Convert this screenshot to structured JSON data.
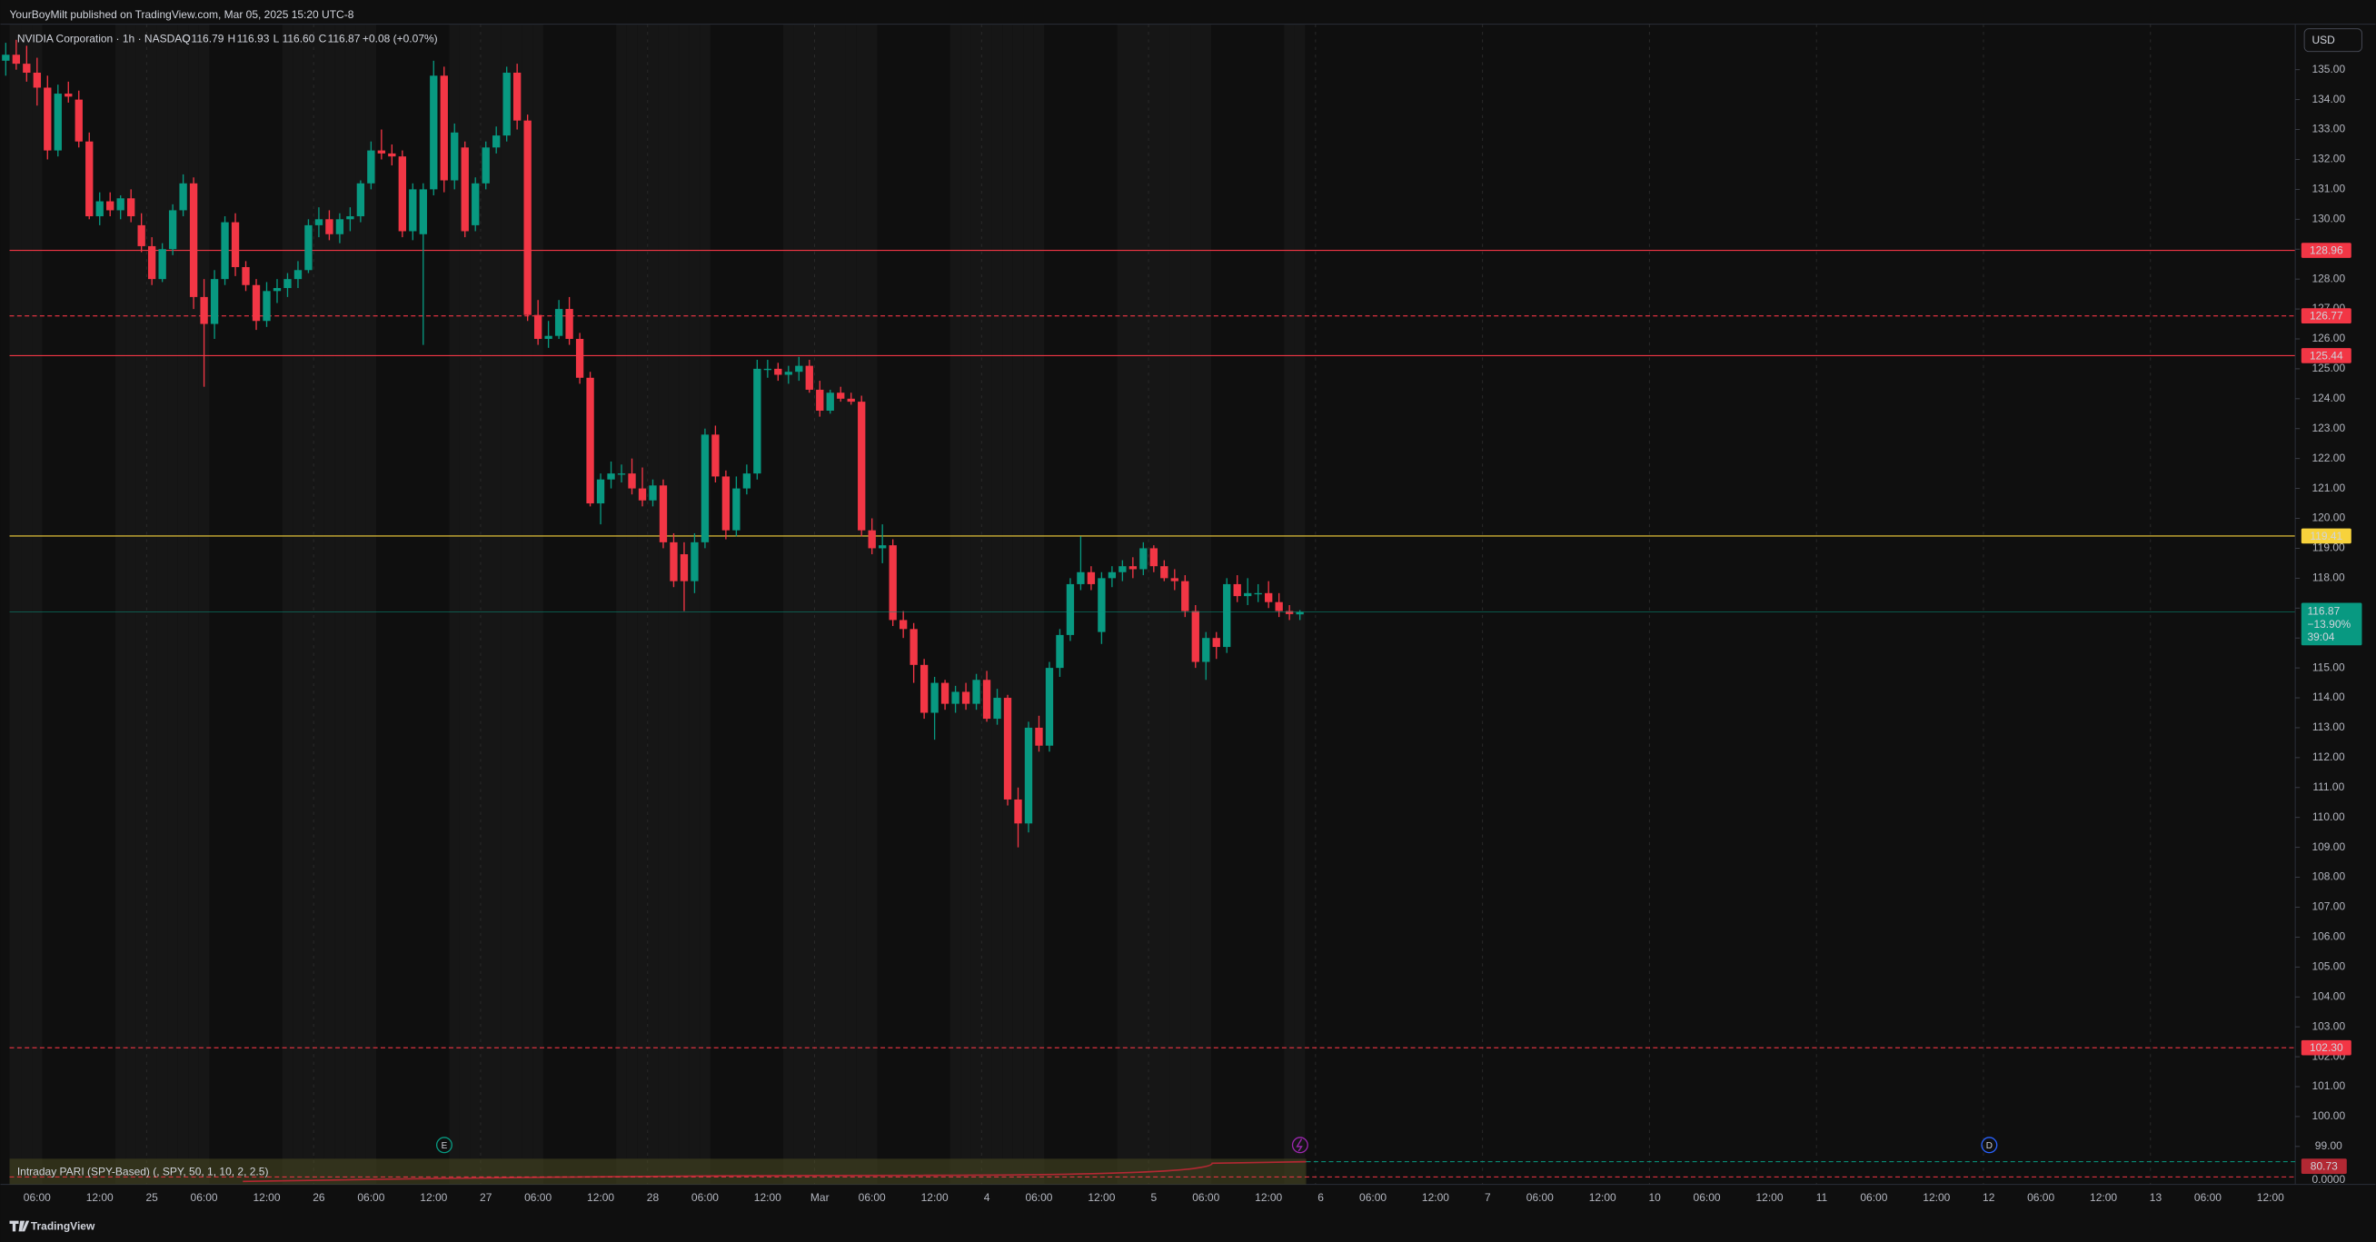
{
  "chart_data": {
    "type": "candlestick",
    "header": "YourBoyMilt published on TradingView.com, Mar 05, 2025 15:20 UTC-8",
    "symbol": "NVIDIA Corporation · 1h · NASDAQ",
    "ohlc_legend": [
      {
        "key": "O",
        "value": 116.79
      },
      {
        "key": "H",
        "value": 116.93
      },
      {
        "key": "L",
        "value": 116.6,
        "label": "116.60"
      },
      {
        "key": "C",
        "value": 116.87
      }
    ],
    "change": "+0.08 (+0.07%)",
    "currency": "USD",
    "up_color": "#089981",
    "down_color": "#f23645",
    "categories": [
      null,
      null,
      null,
      "06:00",
      null,
      null,
      null,
      null,
      null,
      "12:00",
      null,
      null,
      null,
      null,
      "25",
      null,
      null,
      null,
      null,
      "06:00",
      null,
      null,
      null,
      null,
      null,
      "12:00",
      null,
      null,
      null,
      null,
      "26",
      null,
      null,
      null,
      null,
      "06:00",
      null,
      null,
      null,
      null,
      null,
      "12:00",
      null,
      null,
      null,
      null,
      "27",
      null,
      null,
      null,
      null,
      "06:00",
      null,
      null,
      null,
      null,
      null,
      "12:00",
      null,
      null,
      null,
      null,
      "28",
      null,
      null,
      null,
      null,
      "06:00",
      null,
      null,
      null,
      null,
      null,
      "12:00",
      null,
      null,
      null,
      null,
      "Mar",
      null,
      null,
      null,
      null,
      "06:00",
      null,
      null,
      null,
      null,
      null,
      "12:00",
      null,
      null,
      null,
      null,
      "4",
      null,
      null,
      null,
      null,
      "06:00",
      null,
      null,
      null,
      null,
      null,
      "12:00",
      null,
      null,
      null,
      null,
      "5",
      null,
      null,
      null,
      null,
      "06:00",
      null,
      null,
      null,
      null,
      null,
      "12:00",
      null,
      null,
      null,
      null,
      "6",
      null,
      null,
      null,
      null,
      "06:00",
      null,
      null,
      null,
      null,
      null,
      "12:00",
      null,
      null,
      null,
      null,
      "7",
      null,
      null,
      null,
      null,
      "06:00",
      null,
      null,
      null,
      null,
      null,
      "12:00",
      null,
      null,
      null,
      null,
      "10",
      null,
      null,
      null,
      null,
      "06:00",
      null,
      null,
      null,
      null,
      null,
      "12:00",
      null,
      null,
      null,
      null,
      "11",
      null,
      null,
      null,
      null,
      "06:00",
      null,
      null,
      null,
      null,
      null,
      "12:00",
      null,
      null,
      null,
      null,
      "12",
      null,
      null,
      null,
      null,
      "06:00",
      null,
      null,
      null,
      null,
      null,
      "12:00",
      null,
      null,
      null,
      null,
      "13",
      null,
      null,
      null,
      null,
      "06:00",
      null,
      null,
      null,
      null,
      null,
      "12:00"
    ],
    "ohlc": [
      [
        135.3,
        135.9,
        134.8,
        135.5
      ],
      [
        135.5,
        136.0,
        135.0,
        135.2
      ],
      [
        135.2,
        135.8,
        134.6,
        134.9
      ],
      [
        134.9,
        135.4,
        133.8,
        134.4
      ],
      [
        134.4,
        134.8,
        132.0,
        132.3
      ],
      [
        132.3,
        134.5,
        132.1,
        134.2
      ],
      [
        134.2,
        134.6,
        133.9,
        134.1
      ],
      [
        134.0,
        134.3,
        132.4,
        132.6
      ],
      [
        132.6,
        132.9,
        130.0,
        130.1
      ],
      [
        130.1,
        130.9,
        129.8,
        130.6
      ],
      [
        130.6,
        130.9,
        130.1,
        130.3
      ],
      [
        130.3,
        130.8,
        130.0,
        130.7
      ],
      [
        130.7,
        131.0,
        129.9,
        130.1
      ],
      [
        129.8,
        130.2,
        128.9,
        129.1
      ],
      [
        129.1,
        129.4,
        127.8,
        128.0
      ],
      [
        128.0,
        129.2,
        127.9,
        129.0
      ],
      [
        129.0,
        130.5,
        128.8,
        130.3
      ],
      [
        130.3,
        131.5,
        130.1,
        131.2
      ],
      [
        131.2,
        131.4,
        127.0,
        127.4
      ],
      [
        127.4,
        128.0,
        124.4,
        126.5
      ],
      [
        126.5,
        128.3,
        126.0,
        128.0
      ],
      [
        128.0,
        130.1,
        127.8,
        129.9
      ],
      [
        129.9,
        130.2,
        128.1,
        128.4
      ],
      [
        128.4,
        128.6,
        127.6,
        127.8
      ],
      [
        127.8,
        128.0,
        126.3,
        126.6
      ],
      [
        126.6,
        127.9,
        126.4,
        127.6
      ],
      [
        127.6,
        128.0,
        127.2,
        127.7
      ],
      [
        127.7,
        128.2,
        127.4,
        128.0
      ],
      [
        128.0,
        128.6,
        127.7,
        128.3
      ],
      [
        128.3,
        130.0,
        128.2,
        129.8
      ],
      [
        129.8,
        130.4,
        129.4,
        130.0
      ],
      [
        130.0,
        130.3,
        129.3,
        129.5
      ],
      [
        129.5,
        130.2,
        129.2,
        130.0
      ],
      [
        130.0,
        130.4,
        129.6,
        130.1
      ],
      [
        130.1,
        131.3,
        129.9,
        131.2
      ],
      [
        131.2,
        132.6,
        131.0,
        132.3
      ],
      [
        132.3,
        133.0,
        132.0,
        132.2
      ],
      [
        132.2,
        132.5,
        131.8,
        132.1
      ],
      [
        132.1,
        132.3,
        129.4,
        129.6
      ],
      [
        129.6,
        131.2,
        129.3,
        131.0
      ],
      [
        129.5,
        131.2,
        125.8,
        131.0
      ],
      [
        131.0,
        135.3,
        130.8,
        134.8
      ],
      [
        134.8,
        135.1,
        130.9,
        131.3
      ],
      [
        131.3,
        133.2,
        131.0,
        132.9
      ],
      [
        132.4,
        132.6,
        129.4,
        129.6
      ],
      [
        129.8,
        131.4,
        129.6,
        131.2
      ],
      [
        131.2,
        132.6,
        131.0,
        132.4
      ],
      [
        132.4,
        133.1,
        132.2,
        132.8
      ],
      [
        132.8,
        135.1,
        132.6,
        134.9
      ],
      [
        134.9,
        135.2,
        133.0,
        133.3
      ],
      [
        133.3,
        133.5,
        126.6,
        126.8
      ],
      [
        126.8,
        127.3,
        125.8,
        126.0
      ],
      [
        126.0,
        126.6,
        125.7,
        126.1
      ],
      [
        126.1,
        127.3,
        126.0,
        127.0
      ],
      [
        127.0,
        127.4,
        125.8,
        126.0
      ],
      [
        126.0,
        126.2,
        124.5,
        124.7
      ],
      [
        124.7,
        124.9,
        120.4,
        120.5
      ],
      [
        120.5,
        121.5,
        119.8,
        121.3
      ],
      [
        121.3,
        121.9,
        121.0,
        121.5
      ],
      [
        121.5,
        121.8,
        121.2,
        121.5
      ],
      [
        121.5,
        122.0,
        120.8,
        121.0
      ],
      [
        121.0,
        121.7,
        120.4,
        120.6
      ],
      [
        120.6,
        121.3,
        120.4,
        121.1
      ],
      [
        121.1,
        121.3,
        119.0,
        119.2
      ],
      [
        119.2,
        119.5,
        117.7,
        117.9
      ],
      [
        118.8,
        119.2,
        116.9,
        117.9
      ],
      [
        117.9,
        119.5,
        117.5,
        119.2
      ],
      [
        119.2,
        123.0,
        119.0,
        122.8
      ],
      [
        122.8,
        123.1,
        121.2,
        121.4
      ],
      [
        121.4,
        121.6,
        119.3,
        119.6
      ],
      [
        119.6,
        121.4,
        119.4,
        121.0
      ],
      [
        121.0,
        121.8,
        120.8,
        121.5
      ],
      [
        121.5,
        125.3,
        121.3,
        125.0
      ],
      [
        125.0,
        125.3,
        124.7,
        125.0
      ],
      [
        125.0,
        125.2,
        124.6,
        124.8
      ],
      [
        124.8,
        125.1,
        124.5,
        124.9
      ],
      [
        124.9,
        125.4,
        124.6,
        125.1
      ],
      [
        125.1,
        125.3,
        124.2,
        124.3
      ],
      [
        124.3,
        124.6,
        123.4,
        123.6
      ],
      [
        123.6,
        124.3,
        123.5,
        124.2
      ],
      [
        124.2,
        124.4,
        123.9,
        124.0
      ],
      [
        124.0,
        124.2,
        123.8,
        123.9
      ],
      [
        123.9,
        124.1,
        119.4,
        119.6
      ],
      [
        119.6,
        120.0,
        118.8,
        119.0
      ],
      [
        119.0,
        119.8,
        118.5,
        119.1
      ],
      [
        119.1,
        119.3,
        116.4,
        116.6
      ],
      [
        116.6,
        116.9,
        116.0,
        116.3
      ],
      [
        116.3,
        116.5,
        114.5,
        115.1
      ],
      [
        115.1,
        115.3,
        113.3,
        113.5
      ],
      [
        113.5,
        114.7,
        112.6,
        114.5
      ],
      [
        114.5,
        114.6,
        113.6,
        113.8
      ],
      [
        113.8,
        114.4,
        113.5,
        114.2
      ],
      [
        114.2,
        114.5,
        113.6,
        113.8
      ],
      [
        113.8,
        114.8,
        113.6,
        114.6
      ],
      [
        114.6,
        114.9,
        113.2,
        113.3
      ],
      [
        113.3,
        114.3,
        113.1,
        114.0
      ],
      [
        114.0,
        114.1,
        110.4,
        110.6
      ],
      [
        110.6,
        111.0,
        109.0,
        109.8
      ],
      [
        109.8,
        113.2,
        109.5,
        113.0
      ],
      [
        113.0,
        113.4,
        112.2,
        112.4
      ],
      [
        112.4,
        115.2,
        112.2,
        115.0
      ],
      [
        115.0,
        116.3,
        114.7,
        116.1
      ],
      [
        116.1,
        118.0,
        115.9,
        117.8
      ],
      [
        117.8,
        119.4,
        117.6,
        118.2
      ],
      [
        118.2,
        118.4,
        117.6,
        117.8
      ],
      [
        116.2,
        118.2,
        115.8,
        118.0
      ],
      [
        118.0,
        118.4,
        117.7,
        118.2
      ],
      [
        118.2,
        118.6,
        117.9,
        118.4
      ],
      [
        118.4,
        118.7,
        118.0,
        118.3
      ],
      [
        118.3,
        119.2,
        118.1,
        119.0
      ],
      [
        119.0,
        119.1,
        118.2,
        118.4
      ],
      [
        118.4,
        118.6,
        117.9,
        118.0
      ],
      [
        118.0,
        118.3,
        117.6,
        117.9
      ],
      [
        117.9,
        118.1,
        116.7,
        116.9
      ],
      [
        116.9,
        117.1,
        115.0,
        115.2
      ],
      [
        115.2,
        116.2,
        114.6,
        116.0
      ],
      [
        116.0,
        116.2,
        115.3,
        115.7
      ],
      [
        115.7,
        118.0,
        115.5,
        117.8
      ],
      [
        117.8,
        118.1,
        117.2,
        117.4
      ],
      [
        117.4,
        118.0,
        117.1,
        117.5
      ],
      [
        117.5,
        117.8,
        117.2,
        117.5
      ],
      [
        117.5,
        117.9,
        117.0,
        117.2
      ],
      [
        117.2,
        117.5,
        116.7,
        116.9
      ],
      [
        116.9,
        117.1,
        116.6,
        116.8
      ],
      [
        116.79,
        116.93,
        116.6,
        116.87
      ],
      null,
      null,
      null,
      null,
      null,
      null,
      null,
      null,
      null,
      null,
      null,
      null,
      null,
      null,
      null,
      null,
      null,
      null,
      null,
      null,
      null,
      null,
      null,
      null,
      null,
      null,
      null,
      null,
      null,
      null,
      null,
      null,
      null,
      null,
      null,
      null,
      null,
      null,
      null,
      null,
      null,
      null,
      null,
      null,
      null,
      null,
      null,
      null,
      null,
      null,
      null,
      null,
      null,
      null,
      null,
      null,
      null,
      null,
      null,
      null,
      null,
      null,
      null,
      null,
      null,
      null,
      null,
      null,
      null,
      null,
      null,
      null,
      null,
      null,
      null,
      null,
      null,
      null,
      null,
      null,
      null,
      null,
      null,
      null,
      null,
      null,
      null,
      null,
      null,
      null,
      null,
      null,
      null
    ],
    "ylim": [
      97.73,
      136.52
    ],
    "yticks": [
      {
        "value": 135,
        "label": "135.00"
      },
      {
        "value": 134,
        "label": "134.00"
      },
      {
        "value": 133,
        "label": "133.00"
      },
      {
        "value": 132,
        "label": "132.00"
      },
      {
        "value": 131,
        "label": "131.00"
      },
      {
        "value": 130,
        "label": "130.00"
      },
      {
        "value": 129,
        "label": "129.00"
      },
      {
        "value": 128,
        "label": "128.00"
      },
      {
        "value": 127,
        "label": "127.00"
      },
      {
        "value": 126,
        "label": "126.00"
      },
      {
        "value": 125,
        "label": "125.00"
      },
      {
        "value": 124,
        "label": "124.00"
      },
      {
        "value": 123,
        "label": "123.00"
      },
      {
        "value": 122,
        "label": "122.00"
      },
      {
        "value": 121,
        "label": "121.00"
      },
      {
        "value": 120,
        "label": "120.00"
      },
      {
        "value": 119,
        "label": "119.00"
      },
      {
        "value": 118,
        "label": "118.00"
      },
      {
        "value": 117,
        "label": "117.00"
      },
      {
        "value": 116,
        "label": "116.00"
      },
      {
        "value": 115,
        "label": "115.00"
      },
      {
        "value": 114,
        "label": "114.00"
      },
      {
        "value": 113,
        "label": "113.00"
      },
      {
        "value": 112,
        "label": "112.00"
      },
      {
        "value": 111,
        "label": "111.00"
      },
      {
        "value": 110,
        "label": "110.00"
      },
      {
        "value": 109,
        "label": "109.00"
      },
      {
        "value": 108,
        "label": "108.00"
      },
      {
        "value": 107,
        "label": "107.00"
      },
      {
        "value": 106,
        "label": "106.00"
      },
      {
        "value": 105,
        "label": "105.00"
      },
      {
        "value": 104,
        "label": "104.00"
      },
      {
        "value": 103,
        "label": "103.00"
      },
      {
        "value": 102,
        "label": "102.00"
      },
      {
        "value": 101,
        "label": "101.00"
      },
      {
        "value": 100,
        "label": "100.00"
      },
      {
        "value": 99,
        "label": "99.00"
      }
    ],
    "levels": [
      {
        "value": 128.96,
        "color": "#f23645",
        "style": "solid"
      },
      {
        "value": 126.77,
        "color": "#f23645",
        "style": "dashed"
      },
      {
        "value": 125.44,
        "color": "#f23645",
        "style": "solid"
      },
      {
        "value": 119.41,
        "color": "#f7d23c",
        "style": "solid"
      },
      {
        "value": 102.3,
        "label": "102.30",
        "color": "#f23645",
        "style": "dashed"
      }
    ],
    "last_price": {
      "value": 116.87,
      "change": "−13.90%",
      "countdown": "39:04"
    },
    "indicator": {
      "title": "Intraday PARI (SPY-Based) (, SPY, 50, 1, 10, 2, 2.5)",
      "value": 80.73,
      "tick": {
        "value": 0,
        "label": "0.0000"
      }
    },
    "events": [
      "E",
      "D"
    ],
    "footer": "TradingView"
  }
}
